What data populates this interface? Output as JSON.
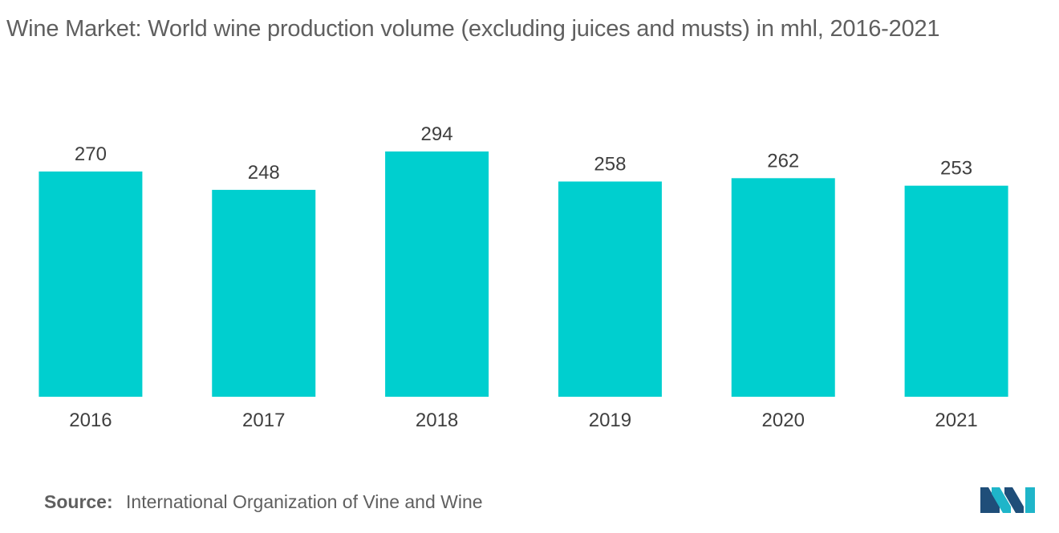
{
  "title": "Wine Market: World wine production volume (excluding juices and musts) in mhl, 2016-2021",
  "source": {
    "label": "Source:",
    "text": "International Organization of Vine and Wine"
  },
  "logo": {
    "icon": "mordor-intelligence-logo-icon",
    "colors": [
      "#1f4e79",
      "#1fb5c9"
    ]
  },
  "chart_data": {
    "type": "bar",
    "categories": [
      "2016",
      "2017",
      "2018",
      "2019",
      "2020",
      "2021"
    ],
    "values": [
      270,
      248,
      294,
      258,
      262,
      253
    ],
    "title": "Wine Market: World wine production volume (excluding juices and musts) in mhl, 2016-2021",
    "xlabel": "",
    "ylabel": "",
    "ylim": [
      0,
      294
    ],
    "grid": false,
    "legend": "none",
    "bar_color": "#00cfcf",
    "data_labels": true
  }
}
